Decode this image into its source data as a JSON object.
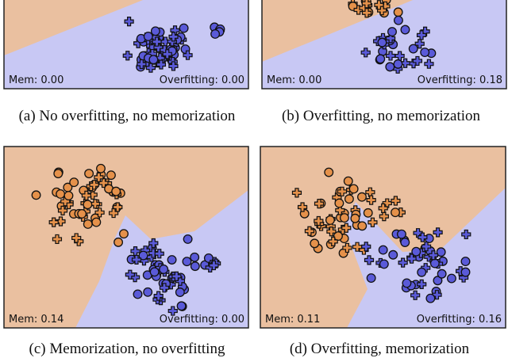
{
  "panels": [
    {
      "id": "a",
      "mem": "Mem: 0.00",
      "overfitting": "Overfitting: 0.00",
      "caption": "(a) No overfitting, no memorization"
    },
    {
      "id": "b",
      "mem": "Mem: 0.00",
      "overfitting": "Overfitting: 0.18",
      "caption": "(b) Overfitting, no memorization"
    },
    {
      "id": "c",
      "mem": "Mem: 0.14",
      "overfitting": "Overfitting: 0.00",
      "caption": "(c) Memorization, no overfitting"
    },
    {
      "id": "d",
      "mem": "Mem: 0.11",
      "overfitting": "Overfitting: 0.16",
      "caption": "(d) Overfitting, memorization"
    }
  ],
  "colors": {
    "orange_region": "#eac0a0",
    "blue_region": "#c8c8f4",
    "orange_point": "#e5914a",
    "blue_point": "#5a5ad8"
  }
}
